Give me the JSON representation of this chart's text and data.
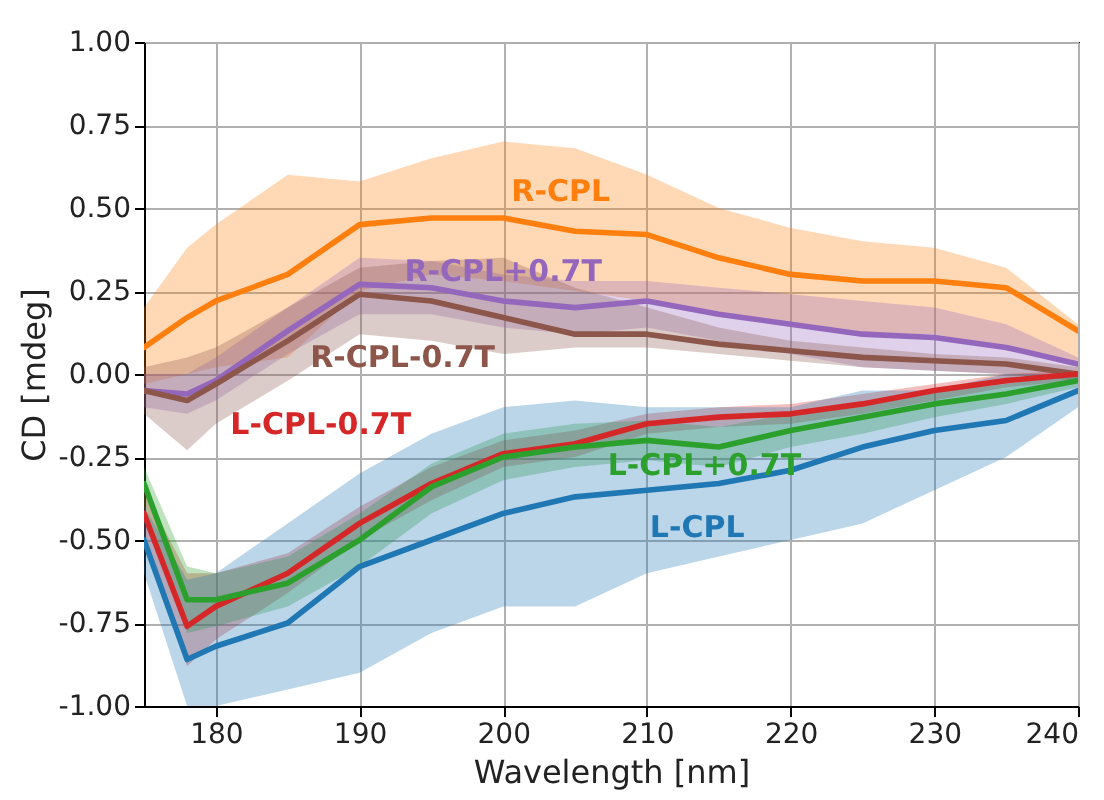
{
  "chart_data": {
    "type": "line",
    "xlabel": "Wavelength [nm]",
    "ylabel": "CD [mdeg]",
    "x": [
      175,
      178,
      180,
      185,
      190,
      195,
      200,
      205,
      210,
      215,
      220,
      225,
      230,
      235,
      240
    ],
    "xlim": [
      175,
      240
    ],
    "xticks": [
      180,
      190,
      200,
      210,
      220,
      230,
      240
    ],
    "ylim": [
      -1,
      1
    ],
    "yticks": [
      {
        "value": -1,
        "label": "-1.00"
      },
      {
        "value": -0.75,
        "label": "-0.75"
      },
      {
        "value": -0.5,
        "label": "-0.50"
      },
      {
        "value": -0.25,
        "label": "-0.25"
      },
      {
        "value": 0,
        "label": "0.00"
      },
      {
        "value": 0.25,
        "label": "0.25"
      },
      {
        "value": 0.5,
        "label": "0.50"
      },
      {
        "value": 0.75,
        "label": "0.75"
      },
      {
        "value": 1,
        "label": "1.00"
      }
    ],
    "grid": true,
    "legend": false,
    "line_style": "solid",
    "marker": "none",
    "series": [
      {
        "name": "R-CPL",
        "color": "#ff7f0e",
        "values": [
          0.08,
          0.17,
          0.22,
          0.3,
          0.45,
          0.47,
          0.47,
          0.43,
          0.42,
          0.35,
          0.3,
          0.28,
          0.28,
          0.26,
          0.13
        ],
        "lower": [
          -0.03,
          0.0,
          0.02,
          0.05,
          0.25,
          0.3,
          0.28,
          0.25,
          0.22,
          0.18,
          0.15,
          0.12,
          0.12,
          0.08,
          0.02
        ],
        "upper": [
          0.2,
          0.38,
          0.45,
          0.6,
          0.58,
          0.65,
          0.7,
          0.68,
          0.6,
          0.5,
          0.44,
          0.4,
          0.38,
          0.32,
          0.15
        ]
      },
      {
        "name": "R-CPL+0.7T",
        "color": "#9467bd",
        "values": [
          -0.05,
          -0.06,
          -0.02,
          0.13,
          0.27,
          0.26,
          0.22,
          0.2,
          0.22,
          0.18,
          0.15,
          0.12,
          0.11,
          0.08,
          0.03
        ],
        "lower": [
          -0.1,
          -0.12,
          -0.08,
          0.06,
          0.18,
          0.18,
          0.14,
          0.12,
          0.14,
          0.1,
          0.06,
          0.02,
          0.01,
          0.0,
          0.0
        ],
        "upper": [
          0.0,
          0.0,
          0.05,
          0.2,
          0.35,
          0.34,
          0.3,
          0.28,
          0.28,
          0.26,
          0.24,
          0.22,
          0.2,
          0.15,
          0.05
        ]
      },
      {
        "name": "R-CPL-0.7T",
        "color": "#8c564b",
        "values": [
          -0.05,
          -0.08,
          -0.03,
          0.1,
          0.24,
          0.22,
          0.17,
          0.12,
          0.12,
          0.09,
          0.07,
          0.05,
          0.04,
          0.03,
          0.0
        ],
        "lower": [
          -0.12,
          -0.23,
          -0.15,
          -0.02,
          0.12,
          0.1,
          0.06,
          0.08,
          0.08,
          0.06,
          0.04,
          0.02,
          0.01,
          0.0,
          -0.02
        ],
        "upper": [
          0.02,
          0.05,
          0.08,
          0.2,
          0.32,
          0.34,
          0.35,
          0.26,
          0.2,
          0.14,
          0.1,
          0.08,
          0.06,
          0.05,
          0.02
        ]
      },
      {
        "name": "L-CPL-0.7T",
        "color": "#d62728",
        "values": [
          -0.42,
          -0.76,
          -0.7,
          -0.6,
          -0.45,
          -0.33,
          -0.24,
          -0.21,
          -0.15,
          -0.13,
          -0.12,
          -0.09,
          -0.05,
          -0.02,
          0.0
        ],
        "lower": [
          -0.5,
          -0.88,
          -0.8,
          -0.66,
          -0.5,
          -0.38,
          -0.28,
          -0.25,
          -0.18,
          -0.16,
          -0.15,
          -0.12,
          -0.08,
          -0.04,
          -0.02
        ],
        "upper": [
          -0.35,
          -0.6,
          -0.6,
          -0.54,
          -0.4,
          -0.28,
          -0.2,
          -0.17,
          -0.12,
          -0.1,
          -0.09,
          -0.06,
          -0.03,
          0.0,
          0.01
        ]
      },
      {
        "name": "L-CPL+0.7T",
        "color": "#2ca02c",
        "values": [
          -0.33,
          -0.68,
          -0.68,
          -0.63,
          -0.5,
          -0.34,
          -0.25,
          -0.22,
          -0.2,
          -0.22,
          -0.17,
          -0.13,
          -0.09,
          -0.06,
          -0.02
        ],
        "lower": [
          -0.4,
          -0.78,
          -0.76,
          -0.7,
          -0.58,
          -0.42,
          -0.32,
          -0.28,
          -0.26,
          -0.28,
          -0.22,
          -0.18,
          -0.13,
          -0.09,
          -0.04
        ],
        "upper": [
          -0.28,
          -0.58,
          -0.6,
          -0.55,
          -0.42,
          -0.27,
          -0.18,
          -0.15,
          -0.14,
          -0.16,
          -0.12,
          -0.09,
          -0.05,
          -0.03,
          0.0
        ]
      },
      {
        "name": "L-CPL",
        "color": "#1f77b4",
        "values": [
          -0.5,
          -0.86,
          -0.82,
          -0.75,
          -0.58,
          -0.5,
          -0.42,
          -0.37,
          -0.35,
          -0.33,
          -0.29,
          -0.22,
          -0.17,
          -0.14,
          -0.05
        ],
        "lower": [
          -0.6,
          -1.0,
          -1.0,
          -0.95,
          -0.9,
          -0.78,
          -0.7,
          -0.7,
          -0.6,
          -0.55,
          -0.5,
          -0.45,
          -0.35,
          -0.25,
          -0.1
        ],
        "upper": [
          -0.4,
          -0.62,
          -0.6,
          -0.45,
          -0.3,
          -0.18,
          -0.1,
          -0.08,
          -0.1,
          -0.1,
          -0.1,
          -0.05,
          -0.05,
          0.0,
          0.0
        ]
      }
    ]
  }
}
